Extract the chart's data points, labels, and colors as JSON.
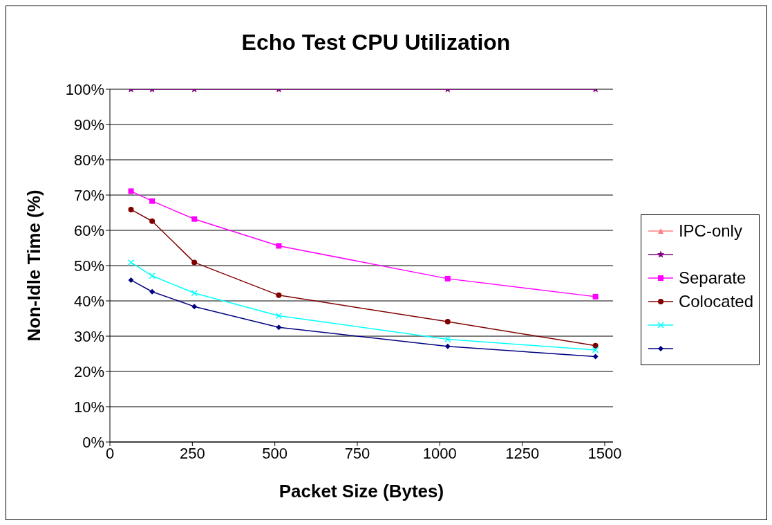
{
  "chart_data": {
    "type": "line",
    "title": "Echo Test CPU Utilization",
    "xlabel": "Packet Size (Bytes)",
    "ylabel": "Non-Idle Time (%)",
    "x": [
      64,
      128,
      256,
      512,
      1024,
      1472
    ],
    "xlim": [
      0,
      1525
    ],
    "xticks": [
      0,
      250,
      500,
      750,
      1000,
      1250,
      1500
    ],
    "ylim": [
      0,
      100
    ],
    "yticks": [
      {
        "value": 0,
        "label": "0%"
      },
      {
        "value": 10,
        "label": "10%"
      },
      {
        "value": 20,
        "label": "20%"
      },
      {
        "value": 30,
        "label": "30%"
      },
      {
        "value": 40,
        "label": "40%"
      },
      {
        "value": 50,
        "label": "50%"
      },
      {
        "value": 60,
        "label": "60%"
      },
      {
        "value": 70,
        "label": "70%"
      },
      {
        "value": 80,
        "label": "80%"
      },
      {
        "value": 90,
        "label": "90%"
      },
      {
        "value": 100,
        "label": "100%"
      }
    ],
    "grid": "y",
    "legend": "right",
    "series": [
      {
        "name": "IPC-only",
        "color": "#ff8080",
        "marker": "triangle",
        "values": [
          null,
          null,
          null,
          null,
          null,
          null
        ]
      },
      {
        "color": "#800080",
        "marker": "star",
        "values": [
          100,
          100,
          100,
          100,
          100,
          100
        ]
      },
      {
        "name": "Separate",
        "color": "#ff00ff",
        "marker": "square",
        "values": [
          71.1,
          68.3,
          63.2,
          55.6,
          46.3,
          41.2
        ]
      },
      {
        "name": "Colocated",
        "color": "#800000",
        "marker": "circle",
        "values": [
          65.9,
          62.6,
          50.9,
          41.6,
          34.1,
          27.3
        ]
      },
      {
        "color": "#00ffff",
        "marker": "cross",
        "values": [
          50.9,
          47.1,
          42.2,
          35.8,
          29.1,
          26.1
        ]
      },
      {
        "color": "#000080",
        "marker": "diamond",
        "values": [
          45.9,
          42.6,
          38.4,
          32.5,
          27.1,
          24.2
        ]
      }
    ]
  }
}
